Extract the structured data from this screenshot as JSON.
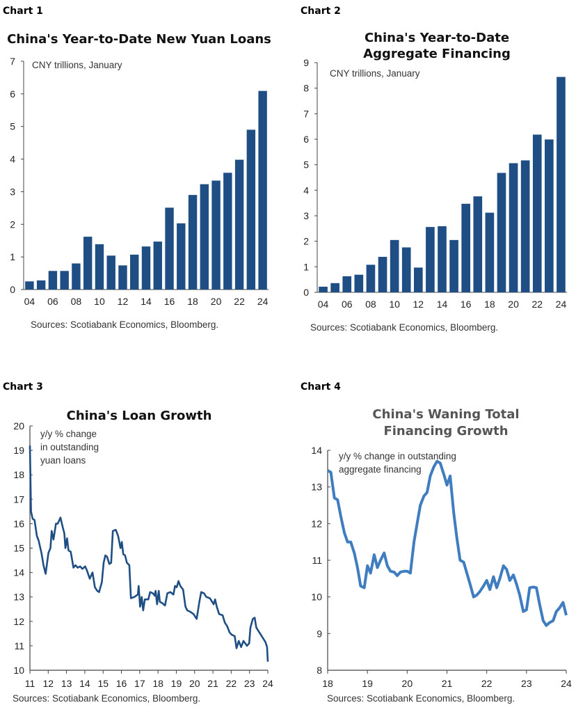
{
  "chart_data": [
    {
      "label": "Chart 1",
      "type": "bar",
      "title": "China's Year-to-Date New Yuan Loans",
      "note": "CNY trillions, January",
      "source": "Sources: Scotiabank Economics, Bloomberg.",
      "categories": [
        "04",
        "05",
        "06",
        "07",
        "08",
        "09",
        "10",
        "11",
        "12",
        "13",
        "14",
        "15",
        "16",
        "17",
        "18",
        "19",
        "20",
        "21",
        "22",
        "23",
        "24"
      ],
      "values": [
        0.25,
        0.28,
        0.57,
        0.57,
        0.8,
        1.62,
        1.39,
        1.04,
        0.74,
        1.07,
        1.32,
        1.47,
        2.51,
        2.03,
        2.9,
        3.23,
        3.34,
        3.58,
        3.98,
        4.9,
        6.09
      ],
      "x_tick_labels": [
        "04",
        "06",
        "08",
        "10",
        "12",
        "14",
        "16",
        "18",
        "20",
        "22",
        "24"
      ],
      "y_ticks": [
        0,
        1,
        2,
        3,
        4,
        5,
        6,
        7
      ],
      "ylim": [
        0,
        7
      ],
      "color": "#1f4e85",
      "grid": false
    },
    {
      "label": "Chart 2",
      "type": "bar",
      "title": [
        "China's Year-to-Date",
        "Aggregate Financing"
      ],
      "note": "CNY trillions, January",
      "source": "Sources: Scotiabank Economics, Bloomberg.",
      "categories": [
        "04",
        "05",
        "06",
        "07",
        "08",
        "09",
        "10",
        "11",
        "12",
        "13",
        "14",
        "15",
        "16",
        "17",
        "18",
        "19",
        "20",
        "21",
        "22",
        "23",
        "24"
      ],
      "values": [
        0.22,
        0.36,
        0.63,
        0.69,
        1.08,
        1.39,
        2.05,
        1.76,
        0.97,
        2.56,
        2.59,
        2.05,
        3.47,
        3.76,
        3.12,
        4.68,
        5.06,
        5.17,
        6.18,
        5.99,
        8.44
      ],
      "x_tick_labels": [
        "04",
        "06",
        "08",
        "10",
        "12",
        "14",
        "16",
        "18",
        "20",
        "22",
        "24"
      ],
      "y_ticks": [
        0,
        1,
        2,
        3,
        4,
        5,
        6,
        7,
        8,
        9
      ],
      "ylim": [
        0,
        9
      ],
      "color": "#1f4e85",
      "grid": false
    },
    {
      "label": "Chart 3",
      "type": "line",
      "title": "China's Loan Growth",
      "note": [
        "y/y % change",
        "in outstanding",
        "yuan loans"
      ],
      "source": "Sources: Scotiabank Economics, Bloomberg.",
      "x_tick_labels": [
        "11",
        "12",
        "13",
        "14",
        "15",
        "16",
        "17",
        "18",
        "19",
        "20",
        "21",
        "22",
        "23",
        "24"
      ],
      "y_ticks": [
        10,
        11,
        12,
        13,
        14,
        15,
        16,
        17,
        18,
        19,
        20
      ],
      "xlim": [
        11,
        24
      ],
      "ylim": [
        10,
        20
      ],
      "color": "#1f4e85",
      "grid": false,
      "points": [
        [
          11.0,
          19.2
        ],
        [
          11.06,
          16.5
        ],
        [
          11.15,
          16.2
        ],
        [
          11.25,
          16.15
        ],
        [
          11.38,
          15.5
        ],
        [
          11.48,
          15.3
        ],
        [
          11.63,
          14.8
        ],
        [
          11.74,
          14.3
        ],
        [
          11.86,
          13.95
        ],
        [
          12.01,
          14.8
        ],
        [
          12.12,
          15.0
        ],
        [
          12.19,
          15.7
        ],
        [
          12.29,
          15.35
        ],
        [
          12.42,
          16.0
        ],
        [
          12.52,
          16.0
        ],
        [
          12.67,
          16.25
        ],
        [
          12.78,
          15.9
        ],
        [
          12.88,
          15.6
        ],
        [
          12.94,
          15.0
        ],
        [
          13.03,
          15.4
        ],
        [
          13.11,
          14.9
        ],
        [
          13.23,
          14.85
        ],
        [
          13.38,
          14.2
        ],
        [
          13.49,
          14.3
        ],
        [
          13.61,
          14.2
        ],
        [
          13.74,
          14.25
        ],
        [
          13.87,
          14.15
        ],
        [
          14.02,
          14.25
        ],
        [
          14.11,
          14.1
        ],
        [
          14.27,
          13.75
        ],
        [
          14.42,
          14.0
        ],
        [
          14.55,
          13.4
        ],
        [
          14.68,
          13.25
        ],
        [
          14.78,
          13.2
        ],
        [
          14.93,
          13.6
        ],
        [
          15.03,
          14.4
        ],
        [
          15.12,
          14.7
        ],
        [
          15.21,
          14.65
        ],
        [
          15.34,
          14.35
        ],
        [
          15.44,
          14.4
        ],
        [
          15.53,
          15.7
        ],
        [
          15.69,
          15.75
        ],
        [
          15.82,
          15.5
        ],
        [
          15.95,
          15.0
        ],
        [
          16.02,
          15.25
        ],
        [
          16.1,
          14.75
        ],
        [
          16.2,
          14.7
        ],
        [
          16.3,
          14.4
        ],
        [
          16.43,
          14.3
        ],
        [
          16.52,
          12.95
        ],
        [
          16.71,
          13.0
        ],
        [
          16.9,
          13.1
        ],
        [
          16.94,
          13.45
        ],
        [
          17.02,
          12.6
        ],
        [
          17.11,
          13.0
        ],
        [
          17.19,
          12.45
        ],
        [
          17.28,
          12.9
        ],
        [
          17.47,
          12.9
        ],
        [
          17.57,
          13.2
        ],
        [
          17.72,
          13.15
        ],
        [
          17.82,
          13.05
        ],
        [
          17.87,
          13.25
        ],
        [
          17.95,
          12.7
        ],
        [
          18.04,
          13.25
        ],
        [
          18.1,
          12.8
        ],
        [
          18.23,
          12.75
        ],
        [
          18.38,
          12.65
        ],
        [
          18.51,
          13.15
        ],
        [
          18.67,
          13.2
        ],
        [
          18.84,
          13.1
        ],
        [
          18.93,
          13.45
        ],
        [
          19.02,
          13.4
        ],
        [
          19.12,
          13.65
        ],
        [
          19.22,
          13.45
        ],
        [
          19.37,
          13.3
        ],
        [
          19.5,
          12.6
        ],
        [
          19.6,
          12.45
        ],
        [
          19.75,
          12.4
        ],
        [
          19.94,
          12.3
        ],
        [
          20.11,
          12.1
        ],
        [
          20.26,
          12.8
        ],
        [
          20.36,
          13.2
        ],
        [
          20.51,
          13.15
        ],
        [
          20.64,
          13.0
        ],
        [
          20.83,
          12.95
        ],
        [
          20.96,
          12.8
        ],
        [
          21.04,
          12.7
        ],
        [
          21.12,
          12.9
        ],
        [
          21.21,
          12.6
        ],
        [
          21.34,
          12.3
        ],
        [
          21.53,
          12.25
        ],
        [
          21.65,
          11.95
        ],
        [
          21.78,
          11.8
        ],
        [
          21.91,
          11.55
        ],
        [
          22.03,
          11.45
        ],
        [
          22.19,
          11.4
        ],
        [
          22.29,
          10.9
        ],
        [
          22.41,
          11.2
        ],
        [
          22.54,
          10.95
        ],
        [
          22.67,
          11.2
        ],
        [
          22.86,
          11.0
        ],
        [
          22.98,
          11.1
        ],
        [
          23.05,
          11.75
        ],
        [
          23.18,
          12.1
        ],
        [
          23.28,
          12.15
        ],
        [
          23.37,
          11.75
        ],
        [
          23.49,
          11.6
        ],
        [
          23.62,
          11.45
        ],
        [
          23.75,
          11.3
        ],
        [
          23.87,
          11.15
        ],
        [
          23.96,
          10.95
        ],
        [
          24.0,
          10.35
        ]
      ]
    },
    {
      "label": "Chart 4",
      "type": "line",
      "title": [
        "China's Waning Total",
        "Financing Growth"
      ],
      "note": [
        "y/y % change in outstanding",
        "aggregate financing"
      ],
      "source": "Sources: Scotiabank Economics, Bloomberg.",
      "x_tick_labels": [
        "18",
        "19",
        "20",
        "21",
        "22",
        "23",
        "24"
      ],
      "y_ticks": [
        8,
        9,
        10,
        11,
        12,
        13,
        14
      ],
      "xlim": [
        18,
        24
      ],
      "ylim": [
        8,
        14
      ],
      "color": "#3f7cc0",
      "grid": false,
      "points": [
        [
          18.0,
          13.45
        ],
        [
          18.08,
          13.4
        ],
        [
          18.17,
          12.7
        ],
        [
          18.25,
          12.65
        ],
        [
          18.33,
          12.2
        ],
        [
          18.42,
          11.75
        ],
        [
          18.5,
          11.5
        ],
        [
          18.58,
          11.5
        ],
        [
          18.67,
          11.2
        ],
        [
          18.75,
          10.8
        ],
        [
          18.83,
          10.3
        ],
        [
          18.92,
          10.25
        ],
        [
          19.0,
          10.85
        ],
        [
          19.08,
          10.65
        ],
        [
          19.17,
          11.15
        ],
        [
          19.25,
          10.8
        ],
        [
          19.33,
          11.0
        ],
        [
          19.42,
          11.2
        ],
        [
          19.5,
          10.85
        ],
        [
          19.58,
          10.7
        ],
        [
          19.67,
          10.68
        ],
        [
          19.75,
          10.58
        ],
        [
          19.83,
          10.68
        ],
        [
          19.92,
          10.7
        ],
        [
          20.0,
          10.7
        ],
        [
          20.08,
          10.65
        ],
        [
          20.17,
          11.5
        ],
        [
          20.25,
          12.0
        ],
        [
          20.33,
          12.5
        ],
        [
          20.42,
          12.75
        ],
        [
          20.5,
          12.85
        ],
        [
          20.58,
          13.3
        ],
        [
          20.67,
          13.55
        ],
        [
          20.75,
          13.7
        ],
        [
          20.83,
          13.65
        ],
        [
          20.92,
          13.35
        ],
        [
          21.0,
          13.05
        ],
        [
          21.08,
          13.3
        ],
        [
          21.17,
          12.3
        ],
        [
          21.25,
          11.6
        ],
        [
          21.33,
          11.0
        ],
        [
          21.42,
          10.95
        ],
        [
          21.5,
          10.65
        ],
        [
          21.58,
          10.35
        ],
        [
          21.67,
          10.0
        ],
        [
          21.75,
          10.05
        ],
        [
          21.83,
          10.15
        ],
        [
          21.92,
          10.3
        ],
        [
          22.0,
          10.45
        ],
        [
          22.08,
          10.2
        ],
        [
          22.17,
          10.55
        ],
        [
          22.25,
          10.25
        ],
        [
          22.33,
          10.5
        ],
        [
          22.42,
          10.85
        ],
        [
          22.5,
          10.75
        ],
        [
          22.58,
          10.45
        ],
        [
          22.67,
          10.6
        ],
        [
          22.75,
          10.35
        ],
        [
          22.83,
          10.05
        ],
        [
          22.92,
          9.6
        ],
        [
          23.0,
          9.65
        ],
        [
          23.08,
          10.25
        ],
        [
          23.17,
          10.27
        ],
        [
          23.25,
          10.25
        ],
        [
          23.33,
          9.8
        ],
        [
          23.42,
          9.35
        ],
        [
          23.5,
          9.22
        ],
        [
          23.58,
          9.3
        ],
        [
          23.67,
          9.35
        ],
        [
          23.75,
          9.6
        ],
        [
          23.83,
          9.7
        ],
        [
          23.92,
          9.85
        ],
        [
          24.0,
          9.5
        ]
      ]
    }
  ]
}
